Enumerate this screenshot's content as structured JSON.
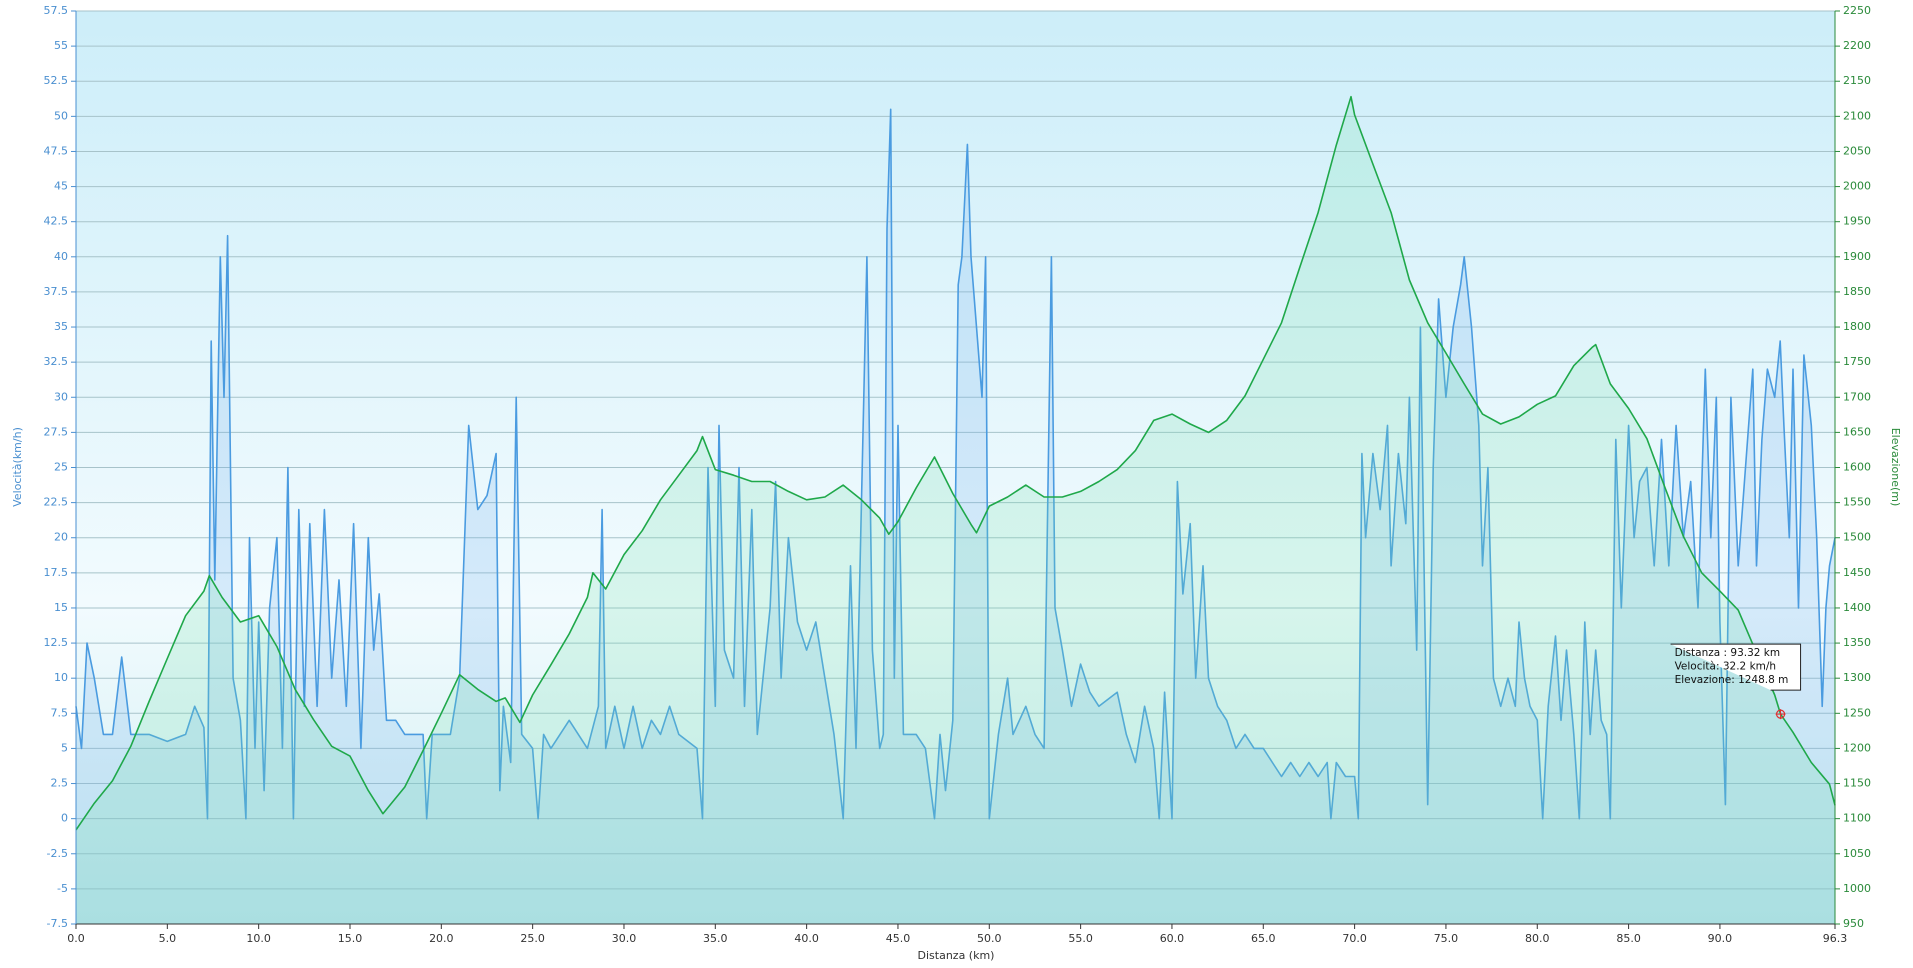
{
  "chart_data": {
    "type": "dual-line",
    "x_label": "Distanza  (km)",
    "y_label": "Velocità(km/h)",
    "y2_label": "Elevazione(m)",
    "xlim": [
      0,
      96.3
    ],
    "xticks": [
      {
        "value": 0,
        "label": "0.0"
      },
      {
        "value": 5,
        "label": "5.0"
      },
      {
        "value": 10,
        "label": "10.0"
      },
      {
        "value": 15,
        "label": "15.0"
      },
      {
        "value": 20,
        "label": "20.0"
      },
      {
        "value": 25,
        "label": "25.0"
      },
      {
        "value": 30,
        "label": "30.0"
      },
      {
        "value": 35,
        "label": "35.0"
      },
      {
        "value": 40,
        "label": "40.0"
      },
      {
        "value": 45,
        "label": "45.0"
      },
      {
        "value": 50,
        "label": "50.0"
      },
      {
        "value": 55,
        "label": "55.0"
      },
      {
        "value": 60,
        "label": "60.0"
      },
      {
        "value": 65,
        "label": "65.0"
      },
      {
        "value": 70,
        "label": "70.0"
      },
      {
        "value": 75,
        "label": "75.0"
      },
      {
        "value": 80,
        "label": "80.0"
      },
      {
        "value": 85,
        "label": "85.0"
      },
      {
        "value": 90,
        "label": "90.0"
      },
      96.3
    ],
    "ylim": [
      -7.5,
      57.5
    ],
    "yticks": [
      -7.5,
      -5,
      -2.5,
      0,
      2.5,
      5,
      7.5,
      10,
      12.5,
      15,
      17.5,
      20,
      22.5,
      25,
      27.5,
      30,
      32.5,
      35,
      37.5,
      40,
      42.5,
      45,
      47.5,
      50,
      52.5,
      55,
      57.5
    ],
    "y2lim": [
      950,
      2250
    ],
    "y2ticks": [
      950,
      1000,
      1050,
      1100,
      1150,
      1200,
      1250,
      1300,
      1350,
      1400,
      1450,
      1500,
      1550,
      1600,
      1650,
      1700,
      1750,
      1800,
      1850,
      1900,
      1950,
      2000,
      2050,
      2100,
      2150,
      2200,
      2250
    ],
    "grid": true,
    "series": [
      {
        "color": "#4a9be0",
        "x": [
          0,
          0.3,
          0.6,
          1,
          1.5,
          2,
          2.5,
          3,
          4,
          5,
          6,
          6.5,
          7,
          7.2,
          7.4,
          7.6,
          7.9,
          8.1,
          8.3,
          8.6,
          9,
          9.3,
          9.5,
          9.8,
          10,
          10.3,
          10.6,
          11,
          11.3,
          11.6,
          11.9,
          12.2,
          12.5,
          12.8,
          13.2,
          13.6,
          14,
          14.4,
          14.8,
          15.2,
          15.6,
          16,
          16.3,
          16.6,
          17,
          17.5,
          18,
          18.5,
          19,
          19.2,
          19.5,
          20,
          20.5,
          21,
          21.5,
          22,
          22.5,
          23,
          23.2,
          23.4,
          23.8,
          24.1,
          24.4,
          25,
          25.3,
          25.6,
          26,
          27,
          28,
          28.6,
          28.8,
          29,
          29.5,
          30,
          30.5,
          31,
          31.5,
          32,
          32.5,
          33,
          34,
          34.3,
          34.6,
          35,
          35.2,
          35.5,
          36,
          36.3,
          36.6,
          37,
          37.3,
          38,
          38.3,
          38.6,
          39,
          39.5,
          40,
          40.5,
          41,
          41.5,
          42,
          42.4,
          42.7,
          43.3,
          43.6,
          44,
          44.2,
          44.4,
          44.6,
          44.8,
          45,
          45.3,
          46,
          46.5,
          47,
          47.3,
          47.6,
          48,
          48.3,
          48.5,
          48.8,
          49,
          49.3,
          49.6,
          49.8,
          50,
          50.5,
          51,
          51.3,
          52,
          52.5,
          53,
          53.4,
          53.6,
          54,
          54.5,
          55,
          55.5,
          56,
          57,
          57.5,
          58,
          58.5,
          59,
          59.3,
          59.6,
          60,
          60.3,
          60.6,
          61,
          61.3,
          61.7,
          62,
          62.5,
          63,
          63.5,
          64,
          64.5,
          65,
          65.5,
          66,
          66.5,
          67,
          67.5,
          68,
          68.5,
          68.7,
          69,
          69.5,
          70,
          70.2,
          70.4,
          70.6,
          71,
          71.4,
          71.8,
          72,
          72.4,
          72.8,
          73,
          73.4,
          73.6,
          74,
          74.3,
          74.6,
          75,
          75.4,
          75.8,
          76,
          76.4,
          76.8,
          77,
          77.3,
          77.6,
          78,
          78.4,
          78.8,
          79,
          79.3,
          79.6,
          80,
          80.3,
          80.6,
          81,
          81.3,
          81.6,
          82,
          82.3,
          82.6,
          82.9,
          83.2,
          83.5,
          83.8,
          84,
          84.3,
          84.6,
          85,
          85.3,
          85.6,
          86,
          86.4,
          86.8,
          87.2,
          87.6,
          88,
          88.4,
          88.8,
          89.2,
          89.5,
          89.8,
          90,
          90.3,
          90.6,
          91,
          91.4,
          91.8,
          92,
          92.3,
          92.6,
          93,
          93.3,
          93.5,
          93.8,
          94,
          94.3,
          94.6,
          95,
          95.3,
          95.6,
          95.8,
          96,
          96.3
        ],
        "values": [
          8,
          5,
          12.5,
          10,
          6,
          6,
          11.5,
          6,
          6,
          5.5,
          6,
          8,
          6.5,
          0,
          34,
          17,
          40,
          30,
          41.5,
          10,
          7,
          0,
          20,
          5,
          14,
          2,
          15,
          20,
          5,
          25,
          0,
          22,
          8,
          21,
          8,
          22,
          10,
          17,
          8,
          21,
          5,
          20,
          12,
          16,
          7,
          7,
          6,
          6,
          6,
          0,
          6,
          6,
          6,
          10,
          28,
          22,
          23,
          26,
          2,
          8,
          4,
          30,
          6,
          5,
          0,
          6,
          5,
          7,
          5,
          8,
          22,
          5,
          8,
          5,
          8,
          5,
          7,
          6,
          8,
          6,
          5,
          0,
          25,
          8,
          28,
          12,
          10,
          25,
          8,
          22,
          6,
          15,
          24,
          10,
          20,
          14,
          12,
          14,
          10,
          6,
          0,
          18,
          5,
          40,
          12,
          5,
          6,
          42,
          50.5,
          10,
          28,
          6,
          6,
          5,
          0,
          6,
          2,
          7,
          38,
          40,
          48,
          40,
          35,
          30,
          40,
          0,
          6,
          10,
          6,
          8,
          6,
          5,
          40,
          15,
          12,
          8,
          11,
          9,
          8,
          9,
          6,
          4,
          8,
          5,
          0,
          9,
          0,
          24,
          16,
          21,
          10,
          18,
          10,
          8,
          7,
          5,
          6,
          5,
          5,
          4,
          3,
          4,
          3,
          4,
          3,
          4,
          0,
          4,
          3,
          3,
          0,
          26,
          20,
          26,
          22,
          28,
          18,
          26,
          21,
          30,
          12,
          35,
          1,
          25,
          37,
          30,
          35,
          38,
          40,
          35,
          28,
          18,
          25,
          10,
          8,
          10,
          8,
          14,
          10,
          8,
          7,
          0,
          8,
          13,
          7,
          12,
          6,
          0,
          14,
          6,
          12,
          7,
          6,
          0,
          27,
          15,
          28,
          20,
          24,
          25,
          18,
          27,
          18,
          28,
          20,
          24,
          15,
          32,
          20,
          30,
          14,
          1,
          30,
          18,
          25,
          32,
          18,
          27,
          32,
          30,
          34,
          28,
          20,
          32,
          15,
          33,
          28,
          20,
          8,
          15,
          18,
          20
        ]
      },
      {
        "color": "#1fa84a",
        "axis": "y2",
        "x": [
          0,
          1,
          2,
          3,
          4,
          5,
          6,
          7,
          7.3,
          8,
          9,
          10,
          11,
          12,
          13,
          14,
          15,
          16,
          16.8,
          18,
          19,
          20,
          21,
          22,
          23,
          23.5,
          24.3,
          25,
          26,
          27,
          28,
          28.3,
          29,
          30,
          31,
          32,
          33,
          34,
          34.3,
          35,
          36,
          37,
          38,
          39,
          40,
          41,
          42,
          43,
          44,
          44.5,
          45,
          46,
          47,
          48,
          49,
          49.3,
          50,
          51,
          52,
          53,
          54,
          55,
          56,
          57,
          58,
          59,
          60,
          61,
          62,
          63,
          64,
          65,
          66,
          67,
          68,
          69,
          69.8,
          70,
          71,
          72,
          73,
          74,
          75,
          76,
          77,
          78,
          79,
          80,
          81,
          82,
          83,
          83.2,
          84,
          85,
          86,
          87,
          88,
          89,
          90,
          91,
          92,
          93,
          93.32,
          94,
          95,
          96,
          96.3
        ],
        "values": [
          1084,
          1122,
          1154,
          1203,
          1267,
          1328,
          1389,
          1424,
          1446,
          1415,
          1380,
          1389,
          1345,
          1284,
          1241,
          1203,
          1189,
          1140,
          1107,
          1145,
          1197,
          1250,
          1305,
          1284,
          1267,
          1272,
          1237,
          1276,
          1319,
          1363,
          1415,
          1450,
          1427,
          1476,
          1510,
          1554,
          1589,
          1624,
          1644,
          1597,
          1589,
          1580,
          1580,
          1566,
          1554,
          1558,
          1575,
          1554,
          1528,
          1505,
          1523,
          1571,
          1615,
          1563,
          1519,
          1507,
          1545,
          1558,
          1575,
          1558,
          1558,
          1566,
          1580,
          1597,
          1624,
          1667,
          1676,
          1662,
          1650,
          1667,
          1702,
          1754,
          1806,
          1885,
          1963,
          2059,
          2128,
          2102,
          2032,
          1963,
          1867,
          1806,
          1763,
          1719,
          1676,
          1662,
          1672,
          1690,
          1702,
          1745,
          1771,
          1775,
          1719,
          1684,
          1641,
          1571,
          1502,
          1450,
          1424,
          1397,
          1336,
          1276,
          1248.8,
          1223,
          1180,
          1149,
          1119
        ]
      }
    ],
    "tooltip": {
      "x": 93.32,
      "y2": 1248.8,
      "lines": [
        "Distanza : 93.32 km",
        "Velocità: 32.2 km/h",
        "Elevazione: 1248.8 m"
      ]
    }
  }
}
